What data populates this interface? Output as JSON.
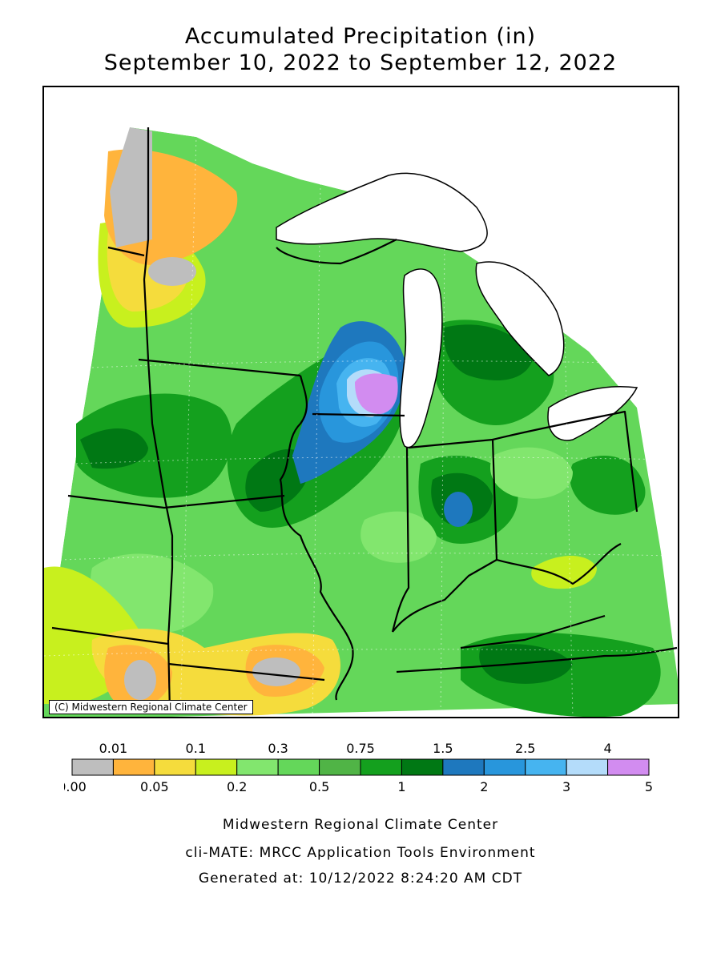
{
  "title": {
    "line1": "Accumulated Precipitation (in)",
    "line2": "September 10, 2022 to September 12, 2022"
  },
  "map": {
    "copyright": "(C) Midwestern Regional Climate Center"
  },
  "legend": {
    "top_labels": [
      "0.01",
      "0.1",
      "0.3",
      "0.75",
      "1.5",
      "2.5",
      "4"
    ],
    "bottom_labels": [
      "0.00",
      "0.05",
      "0.2",
      "0.5",
      "1",
      "2",
      "3",
      "5"
    ],
    "colors": [
      "#bebebe",
      "#ffb43c",
      "#f5dc3c",
      "#c8f01e",
      "#82e66e",
      "#64d75a",
      "#50b446",
      "#14a01e",
      "#007814",
      "#1e78be",
      "#2896dc",
      "#46b4f0",
      "#b4dcfa",
      "#d28cf0"
    ]
  },
  "footer": {
    "line1": "Midwestern Regional Climate Center",
    "line2": "cli-MATE: MRCC Application Tools Environment",
    "line3": "Generated at: 10/12/2022 8:24:20 AM CDT"
  }
}
